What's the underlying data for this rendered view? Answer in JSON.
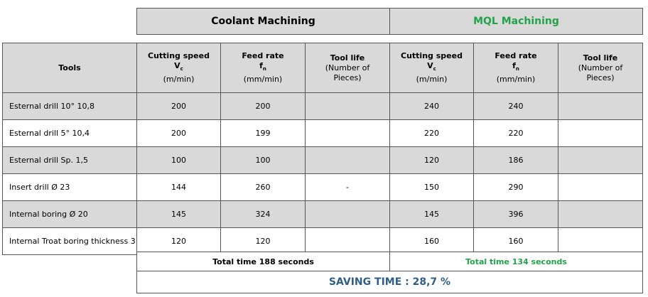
{
  "groups": {
    "coolant": "Coolant Machining",
    "mql": "MQL Machining"
  },
  "headers": {
    "tools": "Tools",
    "cutting_speed": {
      "title": "Cutting speed",
      "symbol": "V",
      "sub": "c",
      "unit": "(m/min)"
    },
    "feed_rate": {
      "title": "Feed rate",
      "symbol": "f",
      "sub": "n",
      "unit": "(mm/min)"
    },
    "tool_life": {
      "title": "Tool life",
      "line2": "(Number of",
      "line3": "Pieces)"
    }
  },
  "rows": [
    {
      "tool": "Esternal drill 10° 10,8",
      "c_speed": "200",
      "c_feed": "200",
      "c_life": "",
      "m_speed": "240",
      "m_feed": "240",
      "m_life": ""
    },
    {
      "tool": "Esternal drill 5° 10,4",
      "c_speed": "200",
      "c_feed": "199",
      "c_life": "",
      "m_speed": "220",
      "m_feed": "220",
      "m_life": ""
    },
    {
      "tool": "Esternal drill  Sp. 1,5",
      "c_speed": "100",
      "c_feed": "100",
      "c_life": "",
      "m_speed": "120",
      "m_feed": "186",
      "m_life": ""
    },
    {
      "tool": "Insert drill Ø 23",
      "c_speed": "144",
      "c_feed": "260",
      "c_life": "-",
      "m_speed": "150",
      "m_feed": "290",
      "m_life": ""
    },
    {
      "tool": "Internal boring Ø 20",
      "c_speed": "145",
      "c_feed": "324",
      "c_life": "",
      "m_speed": "145",
      "m_feed": "396",
      "m_life": ""
    },
    {
      "tool": "Internal Troat boring thickness 3",
      "c_speed": "120",
      "c_feed": "120",
      "c_life": "",
      "m_speed": "160",
      "m_feed": "160",
      "m_life": ""
    }
  ],
  "totals": {
    "coolant": "Total time 188 seconds",
    "mql": "Total time 134 seconds"
  },
  "saving": "SAVING TIME :  28,7 %",
  "colors": {
    "gray_fill": "#d9d9d9",
    "green_text": "#22a34a",
    "blue_text": "#2e5f8a"
  }
}
